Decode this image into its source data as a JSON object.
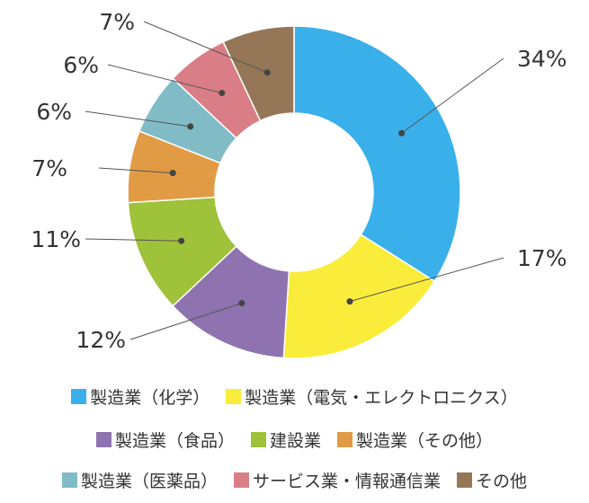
{
  "chart_data": {
    "type": "pie",
    "style": "donut",
    "categories": [
      "製造業（化学）",
      "製造業（電気・エレクトロニクス）",
      "製造業（食品）",
      "建設業",
      "製造業（その他）",
      "製造業（医薬品）",
      "サービス業・情報通信業",
      "その他"
    ],
    "values": [
      34,
      17,
      12,
      11,
      7,
      6,
      6,
      7
    ],
    "labels": [
      "34%",
      "17%",
      "12%",
      "11%",
      "7%",
      "6%",
      "6%",
      "7%"
    ],
    "colors": [
      "#3AB0EB",
      "#FAEC3A",
      "#8E73B0",
      "#9EC23A",
      "#E29B45",
      "#80BBC6",
      "#D97E86",
      "#957757"
    ],
    "legend_position": "bottom"
  }
}
